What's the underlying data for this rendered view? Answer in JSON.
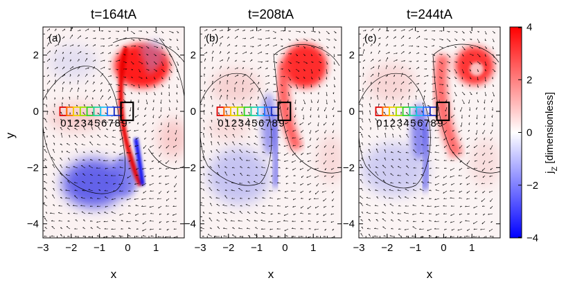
{
  "chart_data": {
    "type": "heatmap",
    "colorbar": {
      "label": "j_Z [dimensionless]",
      "label_main": "j",
      "label_sub": "Z",
      "label_rest": " [dimensionless]",
      "range": [
        -4,
        4
      ],
      "ticks": [
        "4",
        "2",
        "0",
        "−2",
        "−4"
      ],
      "tick_values": [
        4,
        2,
        0,
        -2,
        -4
      ],
      "colors": [
        "#0000ff",
        "#ffffff",
        "#ff0000"
      ]
    },
    "xlabel": "x",
    "ylabel": "y",
    "xlim": [
      -3,
      2
    ],
    "ylim": [
      -4.5,
      3
    ],
    "x_ticks": [
      "−3",
      "−2",
      "−1",
      "0",
      "1"
    ],
    "x_tick_values": [
      -3,
      -2,
      -1,
      0,
      1
    ],
    "y_ticks": [
      "2",
      "0",
      "−2",
      "−4"
    ],
    "y_tick_values": [
      2,
      0,
      -2,
      -4
    ],
    "box_labels": [
      "0",
      "1",
      "2",
      "3",
      "4",
      "5",
      "6",
      "7",
      "8",
      "9"
    ],
    "box_colors": [
      "#e00000",
      "#ff7000",
      "#f0d000",
      "#a0e000",
      "#30d030",
      "#20d0a0",
      "#20c0f0",
      "#3070ff",
      "#2030c0",
      "#000000"
    ],
    "panels": [
      {
        "title": "t=164tA",
        "label": "(a)",
        "time": 164
      },
      {
        "title": "t=208tA",
        "label": "(b)",
        "time": 208
      },
      {
        "title": "t=244tA",
        "label": "(c)",
        "time": 244
      }
    ]
  }
}
